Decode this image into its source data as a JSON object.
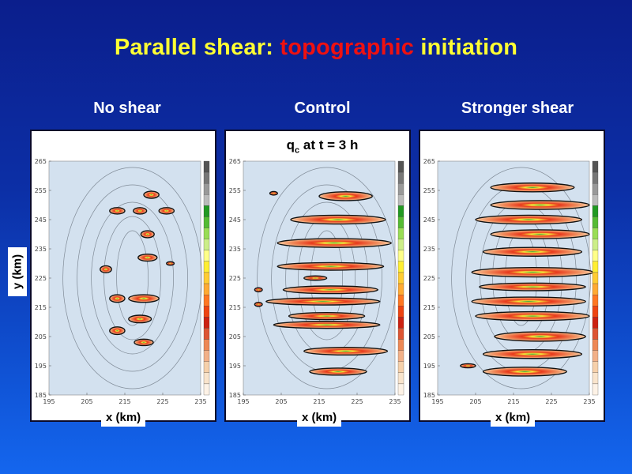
{
  "slide": {
    "title_part1": "Parallel shear: ",
    "title_accent": "topographic",
    "title_part3": " initiation",
    "overlay_label_main": "q",
    "overlay_label_sub": "c",
    "overlay_label_rest": " at t = 3 h",
    "y_axis_label": "y (km)",
    "accent_color": "#ee1111",
    "title_color": "#ffff33"
  },
  "panels": [
    {
      "title": "No shear",
      "xlabel": "x (km)"
    },
    {
      "title": "Control",
      "xlabel": "x (km)"
    },
    {
      "title": "Stronger shear",
      "xlabel": "x (km)"
    }
  ],
  "chart_data": [
    {
      "type": "heatmap",
      "title": "No shear",
      "xlabel": "x (km)",
      "ylabel": "y (km)",
      "xlim": [
        195,
        235
      ],
      "ylim": [
        185,
        265
      ],
      "x_ticks": [
        "195",
        "205",
        "215",
        "225",
        "235"
      ],
      "y_ticks": [
        "185",
        "195",
        "205",
        "215",
        "225",
        "235",
        "245",
        "255",
        "265"
      ],
      "cells": [
        {
          "x": 222,
          "y": 253.5,
          "w": 4,
          "h": 2.4
        },
        {
          "x": 213,
          "y": 248,
          "w": 4,
          "h": 2.2
        },
        {
          "x": 219,
          "y": 248,
          "w": 3.5,
          "h": 2.2
        },
        {
          "x": 226,
          "y": 248,
          "w": 4,
          "h": 2.2
        },
        {
          "x": 221,
          "y": 240,
          "w": 3.5,
          "h": 2.4
        },
        {
          "x": 221,
          "y": 232,
          "w": 5,
          "h": 2.4
        },
        {
          "x": 210,
          "y": 228,
          "w": 3,
          "h": 2.4
        },
        {
          "x": 213,
          "y": 218,
          "w": 4,
          "h": 2.6
        },
        {
          "x": 220,
          "y": 218,
          "w": 8,
          "h": 2.6
        },
        {
          "x": 213,
          "y": 207,
          "w": 4,
          "h": 2.6
        },
        {
          "x": 219,
          "y": 211,
          "w": 6,
          "h": 2.6
        },
        {
          "x": 220,
          "y": 203,
          "w": 5,
          "h": 2.2
        },
        {
          "x": 227,
          "y": 230,
          "w": 2,
          "h": 1.2
        }
      ]
    },
    {
      "type": "heatmap",
      "title": "Control",
      "xlabel": "x (km)",
      "ylabel": "",
      "xlim": [
        195,
        235
      ],
      "ylim": [
        185,
        265
      ],
      "x_ticks": [
        "195",
        "205",
        "215",
        "225",
        "235"
      ],
      "y_ticks": [
        "185",
        "195",
        "205",
        "215",
        "225",
        "235",
        "245",
        "255",
        "265"
      ],
      "cells": [
        {
          "x": 203,
          "y": 254,
          "w": 2,
          "h": 1.2
        },
        {
          "x": 222,
          "y": 253,
          "w": 14,
          "h": 3
        },
        {
          "x": 220,
          "y": 245,
          "w": 25,
          "h": 3
        },
        {
          "x": 219,
          "y": 237,
          "w": 30,
          "h": 3
        },
        {
          "x": 218,
          "y": 229,
          "w": 28,
          "h": 2.6
        },
        {
          "x": 214,
          "y": 225,
          "w": 6,
          "h": 1.5
        },
        {
          "x": 218,
          "y": 221,
          "w": 25,
          "h": 2.6
        },
        {
          "x": 216,
          "y": 217,
          "w": 30,
          "h": 2.4
        },
        {
          "x": 217,
          "y": 212,
          "w": 20,
          "h": 2.4
        },
        {
          "x": 217,
          "y": 209,
          "w": 28,
          "h": 2.4
        },
        {
          "x": 222,
          "y": 200,
          "w": 22,
          "h": 2.6
        },
        {
          "x": 220,
          "y": 193,
          "w": 15,
          "h": 2.4
        },
        {
          "x": 199,
          "y": 216,
          "w": 2,
          "h": 1.4
        },
        {
          "x": 199,
          "y": 221,
          "w": 2,
          "h": 1.4
        }
      ]
    },
    {
      "type": "heatmap",
      "title": "Stronger shear",
      "xlabel": "x (km)",
      "ylabel": "",
      "xlim": [
        195,
        235
      ],
      "ylim": [
        185,
        265
      ],
      "x_ticks": [
        "195",
        "205",
        "215",
        "225",
        "235"
      ],
      "y_ticks": [
        "185",
        "195",
        "205",
        "215",
        "225",
        "235",
        "245",
        "255",
        "265"
      ],
      "cells": [
        {
          "x": 220,
          "y": 256,
          "w": 22,
          "h": 3
        },
        {
          "x": 222,
          "y": 250,
          "w": 26,
          "h": 3
        },
        {
          "x": 219,
          "y": 245,
          "w": 28,
          "h": 3
        },
        {
          "x": 222,
          "y": 240,
          "w": 26,
          "h": 3
        },
        {
          "x": 220,
          "y": 234,
          "w": 26,
          "h": 3
        },
        {
          "x": 220,
          "y": 227,
          "w": 32,
          "h": 3.2
        },
        {
          "x": 220,
          "y": 222,
          "w": 28,
          "h": 2.6
        },
        {
          "x": 219,
          "y": 217,
          "w": 30,
          "h": 3
        },
        {
          "x": 220,
          "y": 212,
          "w": 30,
          "h": 3
        },
        {
          "x": 222,
          "y": 205,
          "w": 24,
          "h": 3.2
        },
        {
          "x": 220,
          "y": 199,
          "w": 26,
          "h": 3
        },
        {
          "x": 218,
          "y": 193,
          "w": 22,
          "h": 3
        },
        {
          "x": 203,
          "y": 195,
          "w": 4,
          "h": 1.4
        }
      ]
    }
  ]
}
